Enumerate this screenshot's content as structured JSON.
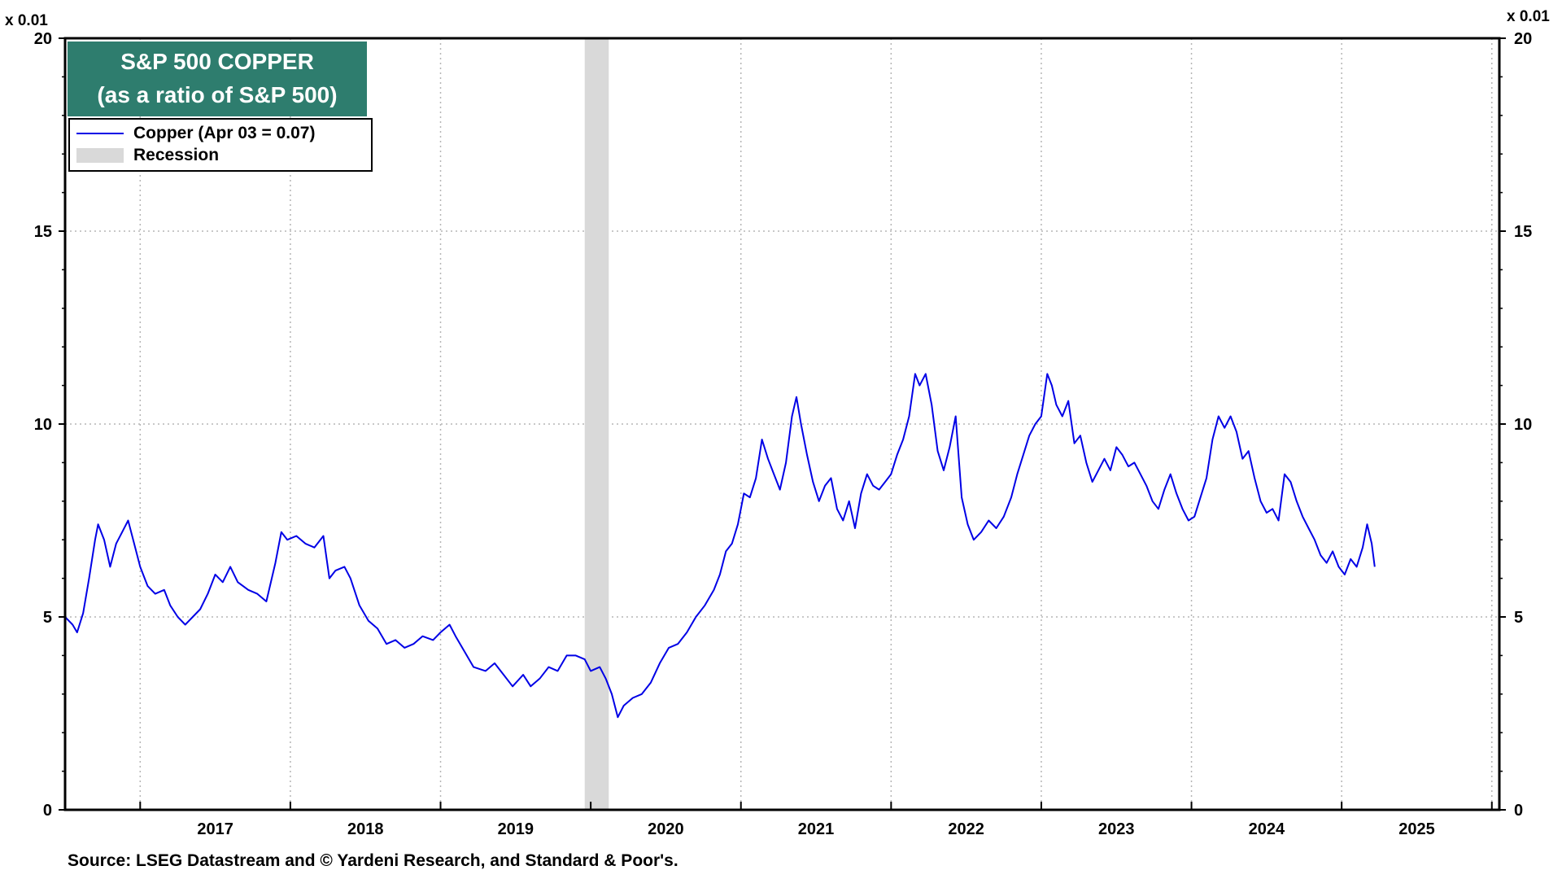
{
  "chart_data": {
    "type": "line",
    "title": "S&P 500 COPPER",
    "subtitle": "(as a ratio of S&P 500)",
    "y_unit_left": "x 0.01",
    "y_unit_right": "x 0.01",
    "ylim": [
      0,
      20
    ],
    "yticks": [
      0,
      5,
      10,
      15,
      20
    ],
    "xlim": [
      2016.5,
      2026.05
    ],
    "xtick_labels": [
      "2017",
      "2018",
      "2019",
      "2020",
      "2021",
      "2022",
      "2023",
      "2024",
      "2025"
    ],
    "legend": {
      "placement": "top-left",
      "entries": [
        "Copper (Apr 03 = 0.07)",
        "Recession"
      ]
    },
    "grid": true,
    "series": [
      {
        "name": "Copper (Apr 03 = 0.07)",
        "color": "#0000e6",
        "points": [
          [
            2016.5,
            5.0
          ],
          [
            2016.55,
            4.8
          ],
          [
            2016.58,
            4.6
          ],
          [
            2016.62,
            5.1
          ],
          [
            2016.66,
            6.0
          ],
          [
            2016.7,
            7.0
          ],
          [
            2016.72,
            7.4
          ],
          [
            2016.76,
            7.0
          ],
          [
            2016.8,
            6.3
          ],
          [
            2016.84,
            6.9
          ],
          [
            2016.88,
            7.2
          ],
          [
            2016.92,
            7.5
          ],
          [
            2016.96,
            6.9
          ],
          [
            2017.0,
            6.3
          ],
          [
            2017.05,
            5.8
          ],
          [
            2017.1,
            5.6
          ],
          [
            2017.16,
            5.7
          ],
          [
            2017.2,
            5.3
          ],
          [
            2017.25,
            5.0
          ],
          [
            2017.3,
            4.8
          ],
          [
            2017.35,
            5.0
          ],
          [
            2017.4,
            5.2
          ],
          [
            2017.45,
            5.6
          ],
          [
            2017.5,
            6.1
          ],
          [
            2017.55,
            5.9
          ],
          [
            2017.6,
            6.3
          ],
          [
            2017.65,
            5.9
          ],
          [
            2017.72,
            5.7
          ],
          [
            2017.78,
            5.6
          ],
          [
            2017.84,
            5.4
          ],
          [
            2017.9,
            6.4
          ],
          [
            2017.94,
            7.2
          ],
          [
            2017.98,
            7.0
          ],
          [
            2018.04,
            7.1
          ],
          [
            2018.1,
            6.9
          ],
          [
            2018.16,
            6.8
          ],
          [
            2018.22,
            7.1
          ],
          [
            2018.26,
            6.0
          ],
          [
            2018.3,
            6.2
          ],
          [
            2018.36,
            6.3
          ],
          [
            2018.4,
            6.0
          ],
          [
            2018.46,
            5.3
          ],
          [
            2018.52,
            4.9
          ],
          [
            2018.58,
            4.7
          ],
          [
            2018.64,
            4.3
          ],
          [
            2018.7,
            4.4
          ],
          [
            2018.76,
            4.2
          ],
          [
            2018.82,
            4.3
          ],
          [
            2018.88,
            4.5
          ],
          [
            2018.95,
            4.4
          ],
          [
            2019.0,
            4.6
          ],
          [
            2019.06,
            4.8
          ],
          [
            2019.1,
            4.5
          ],
          [
            2019.16,
            4.1
          ],
          [
            2019.22,
            3.7
          ],
          [
            2019.3,
            3.6
          ],
          [
            2019.36,
            3.8
          ],
          [
            2019.42,
            3.5
          ],
          [
            2019.48,
            3.2
          ],
          [
            2019.55,
            3.5
          ],
          [
            2019.6,
            3.2
          ],
          [
            2019.66,
            3.4
          ],
          [
            2019.72,
            3.7
          ],
          [
            2019.78,
            3.6
          ],
          [
            2019.84,
            4.0
          ],
          [
            2019.9,
            4.0
          ],
          [
            2019.96,
            3.9
          ],
          [
            2020.0,
            3.6
          ],
          [
            2020.06,
            3.7
          ],
          [
            2020.1,
            3.4
          ],
          [
            2020.14,
            3.0
          ],
          [
            2020.18,
            2.4
          ],
          [
            2020.22,
            2.7
          ],
          [
            2020.28,
            2.9
          ],
          [
            2020.34,
            3.0
          ],
          [
            2020.4,
            3.3
          ],
          [
            2020.46,
            3.8
          ],
          [
            2020.52,
            4.2
          ],
          [
            2020.58,
            4.3
          ],
          [
            2020.64,
            4.6
          ],
          [
            2020.7,
            5.0
          ],
          [
            2020.76,
            5.3
          ],
          [
            2020.82,
            5.7
          ],
          [
            2020.86,
            6.1
          ],
          [
            2020.9,
            6.7
          ],
          [
            2020.94,
            6.9
          ],
          [
            2020.98,
            7.4
          ],
          [
            2021.02,
            8.2
          ],
          [
            2021.06,
            8.1
          ],
          [
            2021.1,
            8.6
          ],
          [
            2021.14,
            9.6
          ],
          [
            2021.18,
            9.1
          ],
          [
            2021.22,
            8.7
          ],
          [
            2021.26,
            8.3
          ],
          [
            2021.3,
            9.0
          ],
          [
            2021.34,
            10.2
          ],
          [
            2021.37,
            10.7
          ],
          [
            2021.4,
            10.0
          ],
          [
            2021.44,
            9.2
          ],
          [
            2021.48,
            8.5
          ],
          [
            2021.52,
            8.0
          ],
          [
            2021.56,
            8.4
          ],
          [
            2021.6,
            8.6
          ],
          [
            2021.64,
            7.8
          ],
          [
            2021.68,
            7.5
          ],
          [
            2021.72,
            8.0
          ],
          [
            2021.76,
            7.3
          ],
          [
            2021.8,
            8.2
          ],
          [
            2021.84,
            8.7
          ],
          [
            2021.88,
            8.4
          ],
          [
            2021.92,
            8.3
          ],
          [
            2021.96,
            8.5
          ],
          [
            2022.0,
            8.7
          ],
          [
            2022.04,
            9.2
          ],
          [
            2022.08,
            9.6
          ],
          [
            2022.12,
            10.2
          ],
          [
            2022.16,
            11.3
          ],
          [
            2022.19,
            11.0
          ],
          [
            2022.23,
            11.3
          ],
          [
            2022.27,
            10.5
          ],
          [
            2022.31,
            9.3
          ],
          [
            2022.35,
            8.8
          ],
          [
            2022.39,
            9.4
          ],
          [
            2022.43,
            10.2
          ],
          [
            2022.47,
            8.1
          ],
          [
            2022.51,
            7.4
          ],
          [
            2022.55,
            7.0
          ],
          [
            2022.6,
            7.2
          ],
          [
            2022.65,
            7.5
          ],
          [
            2022.7,
            7.3
          ],
          [
            2022.75,
            7.6
          ],
          [
            2022.8,
            8.1
          ],
          [
            2022.84,
            8.7
          ],
          [
            2022.88,
            9.2
          ],
          [
            2022.92,
            9.7
          ],
          [
            2022.96,
            10.0
          ],
          [
            2023.0,
            10.2
          ],
          [
            2023.04,
            11.3
          ],
          [
            2023.07,
            11.0
          ],
          [
            2023.1,
            10.5
          ],
          [
            2023.14,
            10.2
          ],
          [
            2023.18,
            10.6
          ],
          [
            2023.22,
            9.5
          ],
          [
            2023.26,
            9.7
          ],
          [
            2023.3,
            9.0
          ],
          [
            2023.34,
            8.5
          ],
          [
            2023.38,
            8.8
          ],
          [
            2023.42,
            9.1
          ],
          [
            2023.46,
            8.8
          ],
          [
            2023.5,
            9.4
          ],
          [
            2023.54,
            9.2
          ],
          [
            2023.58,
            8.9
          ],
          [
            2023.62,
            9.0
          ],
          [
            2023.66,
            8.7
          ],
          [
            2023.7,
            8.4
          ],
          [
            2023.74,
            8.0
          ],
          [
            2023.78,
            7.8
          ],
          [
            2023.82,
            8.3
          ],
          [
            2023.86,
            8.7
          ],
          [
            2023.9,
            8.2
          ],
          [
            2023.94,
            7.8
          ],
          [
            2023.98,
            7.5
          ],
          [
            2024.02,
            7.6
          ],
          [
            2024.06,
            8.1
          ],
          [
            2024.1,
            8.6
          ],
          [
            2024.14,
            9.6
          ],
          [
            2024.18,
            10.2
          ],
          [
            2024.22,
            9.9
          ],
          [
            2024.26,
            10.2
          ],
          [
            2024.3,
            9.8
          ],
          [
            2024.34,
            9.1
          ],
          [
            2024.38,
            9.3
          ],
          [
            2024.42,
            8.6
          ],
          [
            2024.46,
            8.0
          ],
          [
            2024.5,
            7.7
          ],
          [
            2024.54,
            7.8
          ],
          [
            2024.58,
            7.5
          ],
          [
            2024.62,
            8.7
          ],
          [
            2024.66,
            8.5
          ],
          [
            2024.7,
            8.0
          ],
          [
            2024.74,
            7.6
          ],
          [
            2024.78,
            7.3
          ],
          [
            2024.82,
            7.0
          ],
          [
            2024.86,
            6.6
          ],
          [
            2024.9,
            6.4
          ],
          [
            2024.94,
            6.7
          ],
          [
            2024.98,
            6.3
          ],
          [
            2025.02,
            6.1
          ],
          [
            2025.06,
            6.5
          ],
          [
            2025.1,
            6.3
          ],
          [
            2025.14,
            6.8
          ],
          [
            2025.17,
            7.4
          ],
          [
            2025.2,
            6.9
          ],
          [
            2025.22,
            6.3
          ]
        ]
      }
    ],
    "recessions": [
      [
        2019.96,
        2020.12
      ]
    ]
  },
  "source": "Source: LSEG Datastream and © Yardeni Research, and Standard & Poor's.",
  "colors": {
    "line": "#0000e6",
    "title_bg": "#2e7d6e",
    "recession": "#d9d9d9"
  }
}
